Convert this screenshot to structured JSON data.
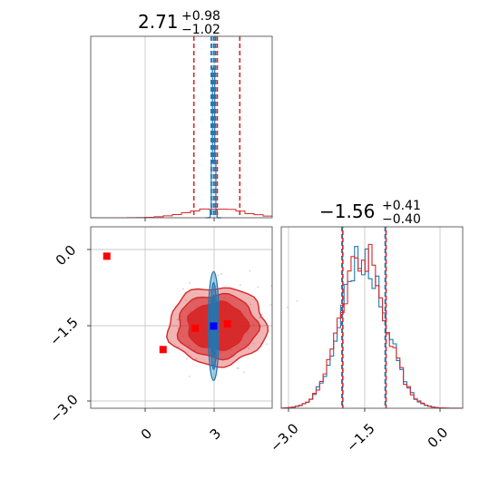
{
  "chart_data": {
    "type": "corner",
    "params": [
      {
        "value": 2.71,
        "plus": "+0.98",
        "minus": "−1.02",
        "value_label": "2.71",
        "q16": 1.69,
        "q50": 2.71,
        "q84": 3.69
      },
      {
        "value": -1.56,
        "plus": "+0.41",
        "minus": "−0.40",
        "value_label": "−1.56",
        "q16": -1.96,
        "q50": -1.56,
        "q84": -1.15
      }
    ],
    "axes": {
      "param1_range": [
        -2.8,
        5.1
      ],
      "param2_range": [
        -3.1,
        0.3
      ],
      "param1_ticks": [
        0,
        3
      ],
      "param1_tick_labels": [
        "0",
        "3"
      ],
      "param2_ticks": [
        0.0,
        -1.5,
        -3.0
      ],
      "param2_tick_labels_2d": [
        "0.0",
        "−1.5",
        "−3.0"
      ],
      "param2_tick_labels_hist": [
        "−3.0",
        "−1.5",
        "0.0"
      ]
    },
    "series": [
      {
        "name": "",
        "color": "#1f77b4",
        "param1_center": 2.55,
        "param1_sigma": 0.05,
        "param2_center": -1.56,
        "param1_quantiles": [
          2.45,
          2.55,
          2.63
        ],
        "param2_quantiles": [
          -1.96,
          -1.56,
          -1.15
        ]
      },
      {
        "name": "",
        "color": "#d62728",
        "param1_center": 2.71,
        "param1_sigma": 1.0,
        "param2_center": -1.56,
        "param1_quantiles": [
          1.69,
          2.71,
          3.69
        ],
        "param2_quantiles": [
          -1.96,
          -1.56,
          -1.15
        ]
      }
    ],
    "markers": {
      "red": [
        [
          -2.1,
          -0.25
        ],
        [
          0.35,
          -2.0
        ],
        [
          1.75,
          -1.6
        ],
        [
          3.15,
          -1.52
        ]
      ],
      "blue": [
        [
          2.55,
          -1.56
        ]
      ]
    },
    "grid": true
  }
}
